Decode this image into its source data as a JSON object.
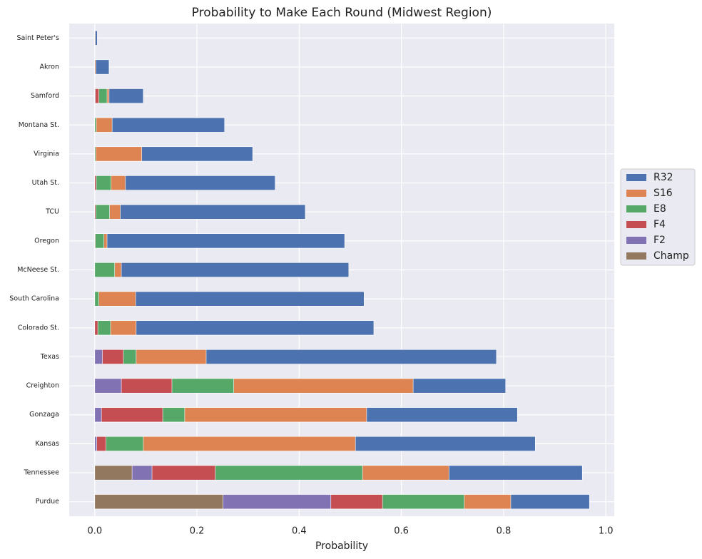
{
  "chart_data": {
    "type": "barh",
    "title": "Probability to Make Each Round (Midwest Region)",
    "x_label": "Probability",
    "categories": [
      "Saint Peter's",
      "Akron",
      "Samford",
      "Montana St.",
      "Virginia",
      "Utah St.",
      "TCU",
      "Oregon",
      "McNeese St.",
      "South Carolina",
      "Colorado St.",
      "Texas",
      "Creighton",
      "Gonzaga",
      "Kansas",
      "Tennessee",
      "Purdue"
    ],
    "series": [
      {
        "name": "R32",
        "color": "#4c72b0",
        "values": [
          0.005,
          0.028,
          0.095,
          0.254,
          0.309,
          0.353,
          0.412,
          0.489,
          0.497,
          0.527,
          0.546,
          0.786,
          0.804,
          0.827,
          0.862,
          0.954,
          0.968
        ]
      },
      {
        "name": "S16",
        "color": "#dd8452",
        "values": [
          0.001,
          0.002,
          0.028,
          0.034,
          0.092,
          0.06,
          0.05,
          0.024,
          0.052,
          0.08,
          0.081,
          0.218,
          0.623,
          0.532,
          0.51,
          0.693,
          0.814
        ]
      },
      {
        "name": "E8",
        "color": "#55a868",
        "values": [
          0,
          0,
          0.024,
          0.003,
          0.002,
          0.032,
          0.029,
          0.018,
          0.039,
          0.008,
          0.031,
          0.081,
          0.272,
          0.176,
          0.095,
          0.524,
          0.723
        ]
      },
      {
        "name": "F4",
        "color": "#c44e52",
        "values": [
          0,
          0,
          0.008,
          0,
          0,
          0.003,
          0.002,
          0.001,
          0,
          0,
          0.006,
          0.056,
          0.151,
          0.133,
          0.022,
          0.236,
          0.563
        ]
      },
      {
        "name": "F2",
        "color": "#8172b3",
        "values": [
          0,
          0,
          0.001,
          0,
          0,
          0,
          0,
          0,
          0,
          0,
          0,
          0.015,
          0.052,
          0.013,
          0.004,
          0.112,
          0.462
        ]
      },
      {
        "name": "Champ",
        "color": "#937860",
        "values": [
          0,
          0,
          0,
          0,
          0,
          0,
          0,
          0,
          0,
          0,
          0,
          0,
          0,
          0,
          0,
          0.073,
          0.251
        ]
      }
    ],
    "xlim": [
      -0.05,
      1.0165
    ],
    "xticks": [
      {
        "value": 0,
        "label": "0.0"
      },
      0.2,
      0.4,
      0.6,
      0.8,
      {
        "value": 1,
        "label": "1.0"
      }
    ],
    "grid": true,
    "legend": "right"
  }
}
